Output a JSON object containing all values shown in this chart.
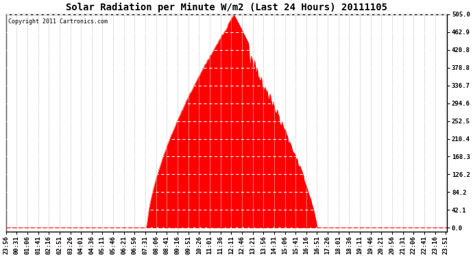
{
  "title": "Solar Radiation per Minute W/m2 (Last 24 Hours) 20111105",
  "copyright_text": "Copyright 2011 Cartronics.com",
  "fill_color": "#FF0000",
  "line_color": "#FF0000",
  "background_color": "#FFFFFF",
  "grid_color": "#C8C8C8",
  "dashed_line_color": "#FF0000",
  "y_ticks": [
    0.0,
    42.1,
    84.2,
    126.2,
    168.3,
    210.4,
    252.5,
    294.6,
    336.7,
    378.8,
    420.8,
    462.9,
    505.0
  ],
  "y_min": -10,
  "y_max": 505.0,
  "title_fontsize": 10,
  "tick_fontsize": 6.5,
  "copyright_fontsize": 6
}
